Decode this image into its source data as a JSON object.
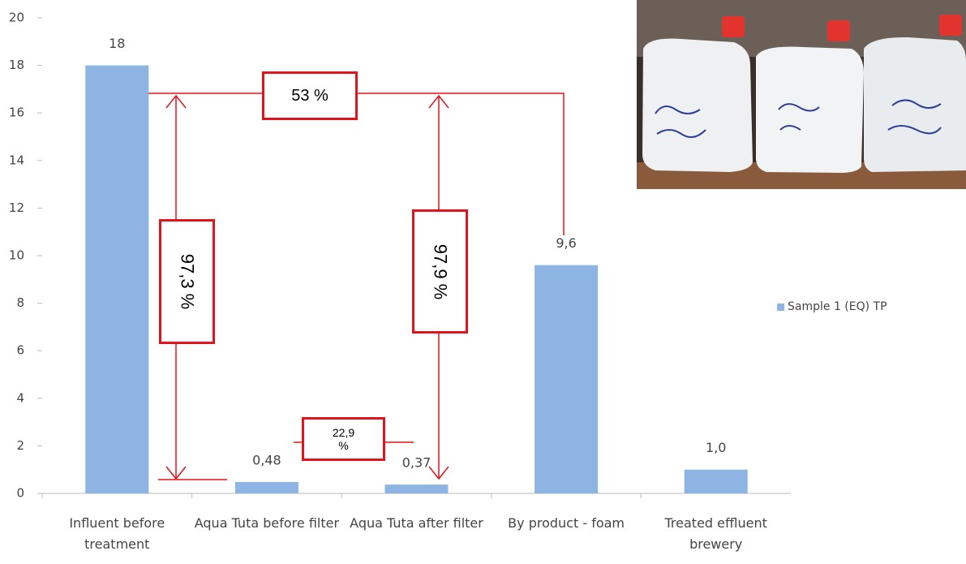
{
  "chart_data": {
    "type": "bar",
    "categories": [
      "Influent  before treatment",
      "Aqua Tuta before filter",
      "Aqua Tuta after filter",
      "By product - foam",
      "Treated effluent brewery"
    ],
    "series": [
      {
        "name": "Sample 1 (EQ) TP",
        "color": "#8db4e2",
        "values": [
          18,
          0.48,
          0.37,
          9.6,
          1.0
        ],
        "value_labels": [
          "18",
          "0,48",
          "0,37",
          "9,6",
          "1,0"
        ]
      }
    ],
    "ylim": [
      0,
      20
    ],
    "yticks": [
      0,
      2,
      4,
      6,
      8,
      10,
      12,
      14,
      16,
      18,
      20
    ],
    "annotations": [
      "53 %",
      "97,3 %",
      "97,9 %",
      "22,9 %"
    ],
    "legend": "right"
  }
}
